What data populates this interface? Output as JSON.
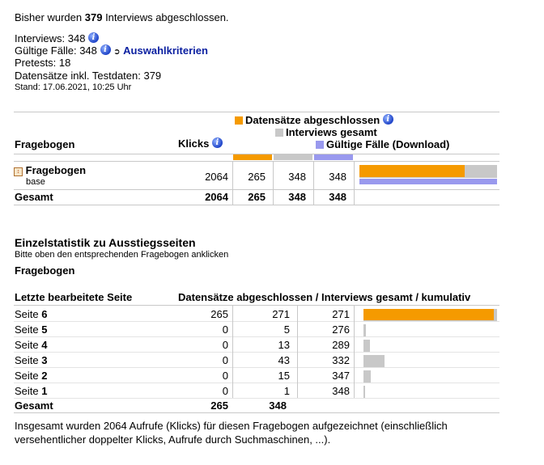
{
  "summary": {
    "line_prefix": "Bisher wurden",
    "count": "379",
    "line_suffix": "Interviews abgeschlossen.",
    "interviews": "Interviews: 348",
    "valid_cases": "Gültige Fälle: 348",
    "criteria_link": "Auswahlkriterien",
    "pretests": "Pretests: 18",
    "records": "Datensätze inkl. Testdaten: 379",
    "stand": "Stand: 17.06.2021, 10:25 Uhr"
  },
  "colors": {
    "orange": "#f59a00",
    "gray": "#c8c8c8",
    "purple": "#9999ee"
  },
  "table1": {
    "col_questionnaire": "Fragebogen",
    "col_clicks": "Klicks",
    "legend": [
      "Datensätze abgeschlossen",
      "Interviews gesamt",
      "Gültige Fälle (Download)"
    ],
    "row": {
      "name": "Fragebogen",
      "sub": "base",
      "clicks": "2064",
      "completed": "265",
      "interviews": "348",
      "valid": "348"
    },
    "bar_fractions": {
      "completed": 0.762,
      "interviews": 1.0,
      "valid": 1.0
    },
    "total": {
      "label": "Gesamt",
      "clicks": "2064",
      "completed": "265",
      "interviews": "348",
      "valid": "348"
    }
  },
  "exit": {
    "heading": "Einzelstatistik zu Ausstiegsseiten",
    "hint": "Bitte oben den entsprechenden Fragebogen anklicken",
    "questionnaire": "Fragebogen",
    "col_last_page": "Letzte bearbeitete Seite",
    "col_stats": "Datensätze abgeschlossen / Interviews gesamt / kumulativ",
    "page_prefix": "Seite",
    "rows": [
      {
        "page": "6",
        "completed": "265",
        "interviews": "271",
        "cumulative": "271",
        "frac_completed": 0.978,
        "frac_interviews": 1.0
      },
      {
        "page": "5",
        "completed": "0",
        "interviews": "5",
        "cumulative": "276",
        "frac_completed": 0,
        "frac_interviews": 0.018
      },
      {
        "page": "4",
        "completed": "0",
        "interviews": "13",
        "cumulative": "289",
        "frac_completed": 0,
        "frac_interviews": 0.048
      },
      {
        "page": "3",
        "completed": "0",
        "interviews": "43",
        "cumulative": "332",
        "frac_completed": 0,
        "frac_interviews": 0.159
      },
      {
        "page": "2",
        "completed": "0",
        "interviews": "15",
        "cumulative": "347",
        "frac_completed": 0,
        "frac_interviews": 0.055
      },
      {
        "page": "1",
        "completed": "0",
        "interviews": "1",
        "cumulative": "348",
        "frac_completed": 0,
        "frac_interviews": 0.004
      }
    ],
    "total": {
      "label": "Gesamt",
      "completed": "265",
      "interviews": "348"
    }
  },
  "footer": "Insgesamt wurden 2064 Aufrufe (Klicks) für diesen Fragebogen aufgezeichnet (einschließlich versehentlicher doppelter Klicks, Aufrufe durch Suchmaschinen, ...)."
}
